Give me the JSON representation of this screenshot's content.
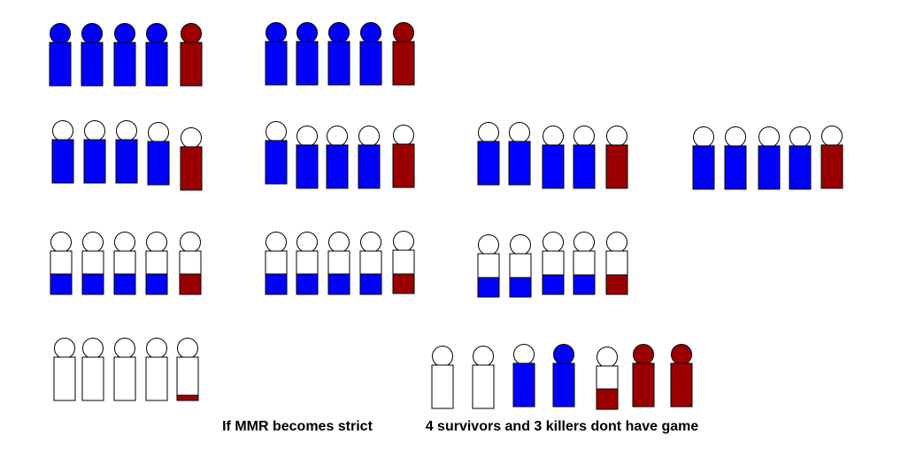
{
  "captions": {
    "left": "If MMR becomes strict",
    "right": "4 survivors and 3 killers dont have game"
  }
}
